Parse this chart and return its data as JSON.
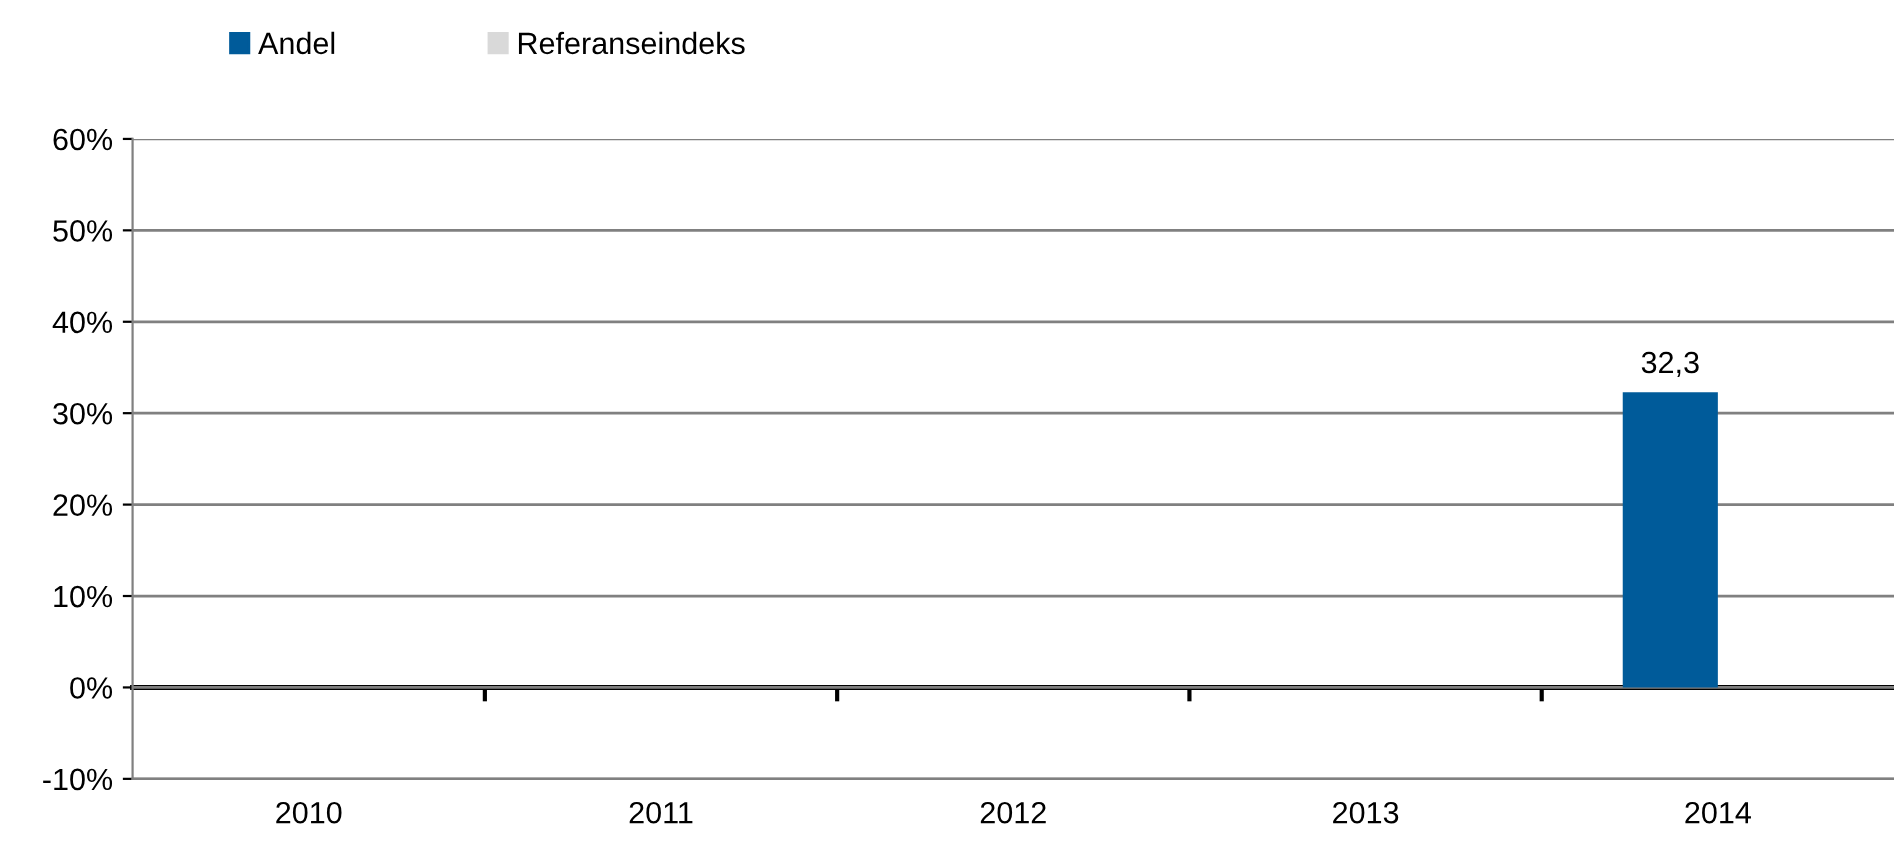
{
  "chart_data": {
    "type": "bar",
    "categories": [
      "2010",
      "2011",
      "2012",
      "2013",
      "2014"
    ],
    "series": [
      {
        "name": "Andel",
        "color": "#005b9a",
        "values": [
          null,
          null,
          null,
          null,
          32.3
        ],
        "value_labels": [
          null,
          null,
          null,
          null,
          "32,3"
        ]
      },
      {
        "name": "Referanseindeks",
        "color": "#d9d9d9",
        "values": [
          null,
          null,
          null,
          null,
          null
        ]
      }
    ],
    "ylim": [
      -10,
      60
    ],
    "yticks": [
      {
        "value": -10,
        "label": "-10%"
      },
      {
        "value": 0,
        "label": "0%"
      },
      {
        "value": 10,
        "label": "10%"
      },
      {
        "value": 20,
        "label": "20%"
      },
      {
        "value": 30,
        "label": "30%"
      },
      {
        "value": 40,
        "label": "40%"
      },
      {
        "value": 50,
        "label": "50%"
      },
      {
        "value": 60,
        "label": "60%"
      }
    ],
    "grid": "y",
    "legend": "top left"
  }
}
